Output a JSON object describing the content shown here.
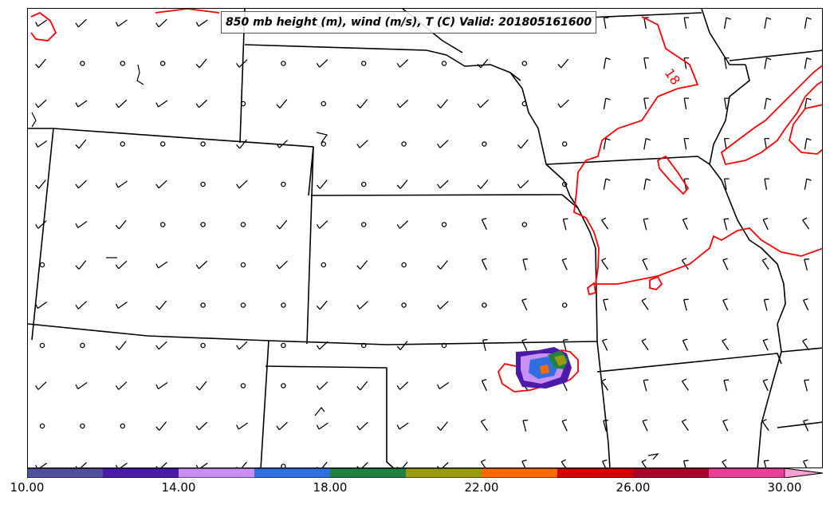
{
  "title": "850 mb height (m), wind (m/s), T (C) Valid: 201805161600",
  "contour_label": "18",
  "colorbar": {
    "min": 10.0,
    "max": 30.0,
    "tick_labels": [
      "10.00",
      "14.00",
      "18.00",
      "22.00",
      "26.00",
      "30.00"
    ],
    "colors": [
      "#4f4f9a",
      "#4b1aa8",
      "#c890f4",
      "#2f6fe0",
      "#228040",
      "#9a9a10",
      "#ff6a00",
      "#d40000",
      "#a8002a",
      "#e8409a",
      "#ff9ed4"
    ],
    "extend": "max"
  },
  "colors": {
    "boundaries": "#000000",
    "temperature_contour": "#ff0000"
  }
}
